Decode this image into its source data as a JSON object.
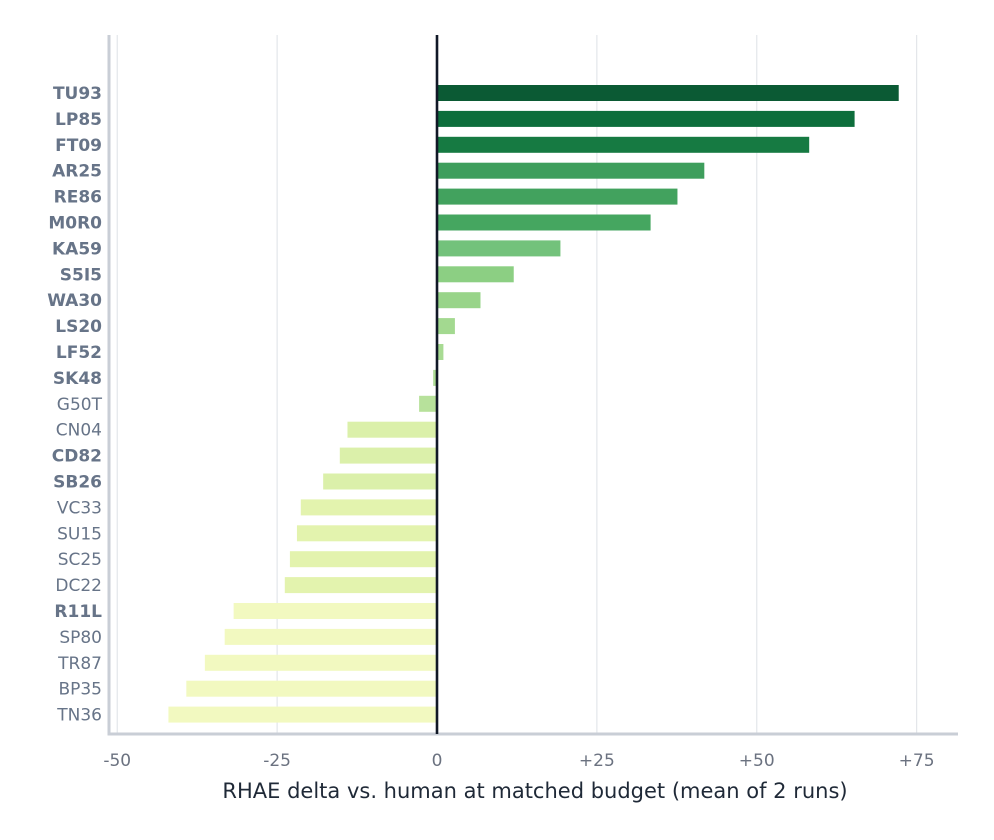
{
  "chart_data": {
    "type": "bar",
    "orientation": "horizontal",
    "title": "",
    "xlabel": "RHAE delta vs. human at matched budget (mean of 2 runs)",
    "ylabel": "",
    "xlim": [
      -52,
      82
    ],
    "x_ticks": [
      -50,
      -25,
      0,
      25,
      50,
      75
    ],
    "x_tick_labels": [
      "-50",
      "-25",
      "0",
      "+25",
      "+50",
      "+75"
    ],
    "grid": true,
    "categories": [
      "TU93",
      "LP85",
      "FT09",
      "AR25",
      "RE86",
      "M0R0",
      "KA59",
      "S5I5",
      "WA30",
      "LS20",
      "LF52",
      "SK48",
      "G50T",
      "CN04",
      "CD82",
      "SB26",
      "VC33",
      "SU15",
      "SC25",
      "DC22",
      "R11L",
      "SP80",
      "TR87",
      "BP35",
      "TN36"
    ],
    "bold_categories": [
      "TU93",
      "LP85",
      "FT09",
      "AR25",
      "RE86",
      "M0R0",
      "KA59",
      "S5I5",
      "WA30",
      "LS20",
      "LF52",
      "SK48",
      "CD82",
      "SB26",
      "R11L"
    ],
    "values": [
      72.2,
      65.3,
      58.2,
      41.8,
      37.6,
      33.4,
      19.3,
      12.0,
      6.8,
      2.8,
      1.0,
      -0.6,
      -2.8,
      -14.0,
      -15.2,
      -17.8,
      -21.3,
      -21.9,
      -23.0,
      -23.8,
      -31.8,
      -33.2,
      -36.3,
      -39.2,
      -42.0
    ],
    "colors": {
      "tu93": "#0b5a34",
      "lp85": "#0d6e3c",
      "ft09": "#167a42",
      "ar25": "#3e9e5c",
      "re86": "#42a25e",
      "m0r0": "#45a660",
      "ka59": "#73c27b",
      "s5i5": "#8ccf83",
      "wa30": "#98d489",
      "ls20": "#a3d990",
      "lf52": "#a8db93",
      "sk48": "#afdd97",
      "g50t": "#b7e19b",
      "low_negative": "#dbf0aa",
      "mid_negative": "#e3f3ae",
      "high_negative": "#f2f9c0"
    }
  }
}
